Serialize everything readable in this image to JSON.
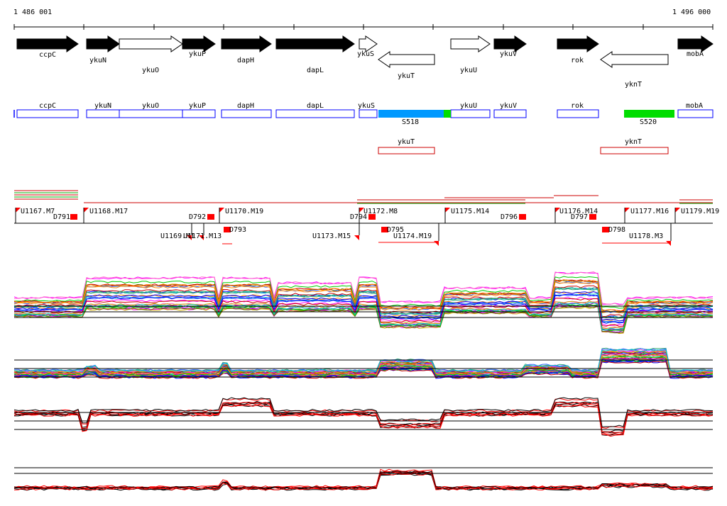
{
  "coordinates": {
    "start": "1 486 001",
    "end": "1 496 000"
  },
  "colors": {
    "arrow_filled": "#000000",
    "arrow_open": "#ffffff",
    "box_blue": "#0000ff",
    "box_red": "#cc0000",
    "segment_cyan": "#0099ff",
    "segment_green": "#00dd00",
    "marker_red": "#ff0000",
    "trace_black": "#000000",
    "trace_red": "#ff0000"
  },
  "genes": [
    {
      "name": "ccpC",
      "strand": "+",
      "filled": true
    },
    {
      "name": "ykuN",
      "strand": "+",
      "filled": true
    },
    {
      "name": "ykuO",
      "strand": "+",
      "filled": false
    },
    {
      "name": "ykuP",
      "strand": "+",
      "filled": true
    },
    {
      "name": "dapH",
      "strand": "+",
      "filled": true
    },
    {
      "name": "dapL",
      "strand": "+",
      "filled": true
    },
    {
      "name": "ykuS",
      "strand": "+",
      "filled": false
    },
    {
      "name": "ykuT",
      "strand": "-",
      "filled": false
    },
    {
      "name": "ykuU",
      "strand": "+",
      "filled": false
    },
    {
      "name": "ykuV",
      "strand": "+",
      "filled": true
    },
    {
      "name": "rok",
      "strand": "+",
      "filled": true
    },
    {
      "name": "yknT",
      "strand": "-",
      "filled": false
    },
    {
      "name": "mobA",
      "strand": "+",
      "filled": true
    }
  ],
  "forward_boxes": [
    "ccpC",
    "ykuN",
    "ykuO",
    "ykuP",
    "dapH",
    "dapL",
    "ykuS",
    "ykuU",
    "ykuV",
    "rok",
    "mobA"
  ],
  "reverse_boxes": [
    "ykuT",
    "yknT"
  ],
  "segments": [
    "S518",
    "S520"
  ],
  "upstream_markers": [
    "U1167.M7",
    "U1168.M17",
    "U1169.M1",
    "U1171.M13",
    "U1170.M19",
    "U1173.M15",
    "U1172.M8",
    "U1174.M19",
    "U1175.M14",
    "U1176.M14",
    "U1177.M16",
    "U1178.M3",
    "U1179.M19"
  ],
  "downstream_markers": [
    "D791",
    "D792",
    "D793",
    "D794",
    "D795",
    "D796",
    "D797",
    "D798"
  ],
  "trace_panels": [
    {
      "style": "multicolor"
    },
    {
      "style": "multicolor"
    },
    {
      "style": "black-red"
    },
    {
      "style": "black-red"
    }
  ]
}
